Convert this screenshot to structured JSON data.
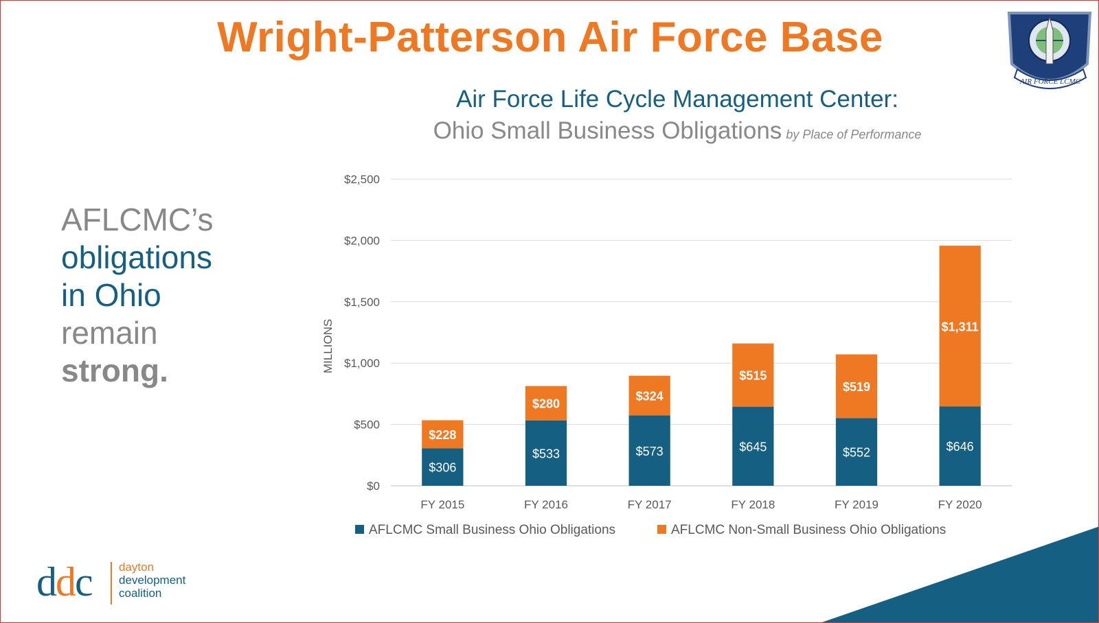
{
  "slide": {
    "title": "Wright-Patterson Air Force Base",
    "emblem_text": "AIR FORCE LCMC",
    "lead_lines": [
      "AFLCMC’s",
      "obligations",
      "in Ohio",
      "remain",
      "strong."
    ],
    "logo": {
      "mark": "ddc",
      "words": [
        "dayton",
        "development",
        "coalition"
      ]
    },
    "colors": {
      "orange": "#ef7823",
      "blue": "#156082",
      "gray": "#888888",
      "border": "#d9342b"
    }
  },
  "chart_data": {
    "type": "bar",
    "stacked": true,
    "title": "Air Force Life Cycle Management Center:",
    "subtitle": "Ohio Small Business Obligations",
    "subtitle_note": "by Place of Performance",
    "ylabel": "MILLIONS",
    "xlabel": "",
    "ylim": [
      0,
      2500
    ],
    "yticks": [
      "$0",
      "$500",
      "$1,000",
      "$1,500",
      "$2,000",
      "$2,500"
    ],
    "ytick_values": [
      0,
      500,
      1000,
      1500,
      2000,
      2500
    ],
    "grid": true,
    "legend_position": "bottom",
    "categories": [
      "FY 2015",
      "FY 2016",
      "FY 2017",
      "FY 2018",
      "FY 2019",
      "FY 2020"
    ],
    "series": [
      {
        "name": "AFLCMC Small Business Ohio Obligations",
        "color": "#156082",
        "values": [
          306,
          533,
          573,
          645,
          552,
          646
        ],
        "labels": [
          "$306",
          "$533",
          "$573",
          "$645",
          "$552",
          "$646"
        ]
      },
      {
        "name": "AFLCMC Non-Small Business Ohio Obligations",
        "color": "#ef7823",
        "values": [
          228,
          280,
          324,
          515,
          519,
          1311
        ],
        "labels": [
          "$228",
          "$280",
          "$324",
          "$515",
          "$519",
          "$1,311"
        ]
      }
    ]
  }
}
